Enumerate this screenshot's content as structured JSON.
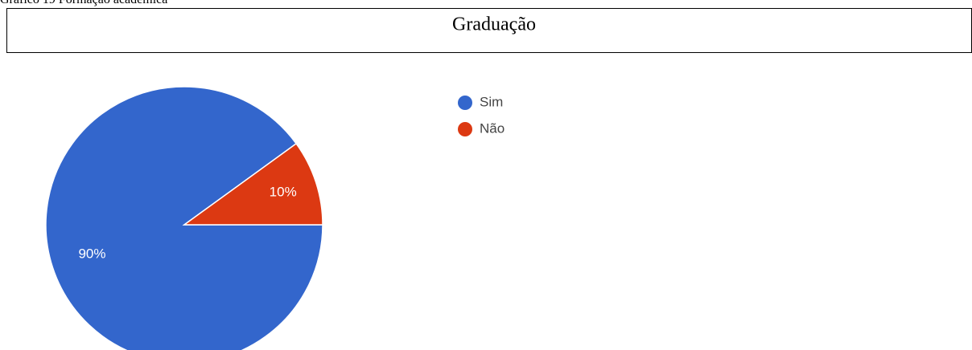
{
  "caption": "Gráfico 19 Formação acadêmica",
  "chart_data": {
    "type": "pie",
    "title": "Graduação",
    "categories": [
      "Sim",
      "Não"
    ],
    "values": [
      90,
      10
    ],
    "value_labels": [
      "90%",
      "10%"
    ],
    "colors": [
      "#3366cc",
      "#dc3912"
    ]
  }
}
